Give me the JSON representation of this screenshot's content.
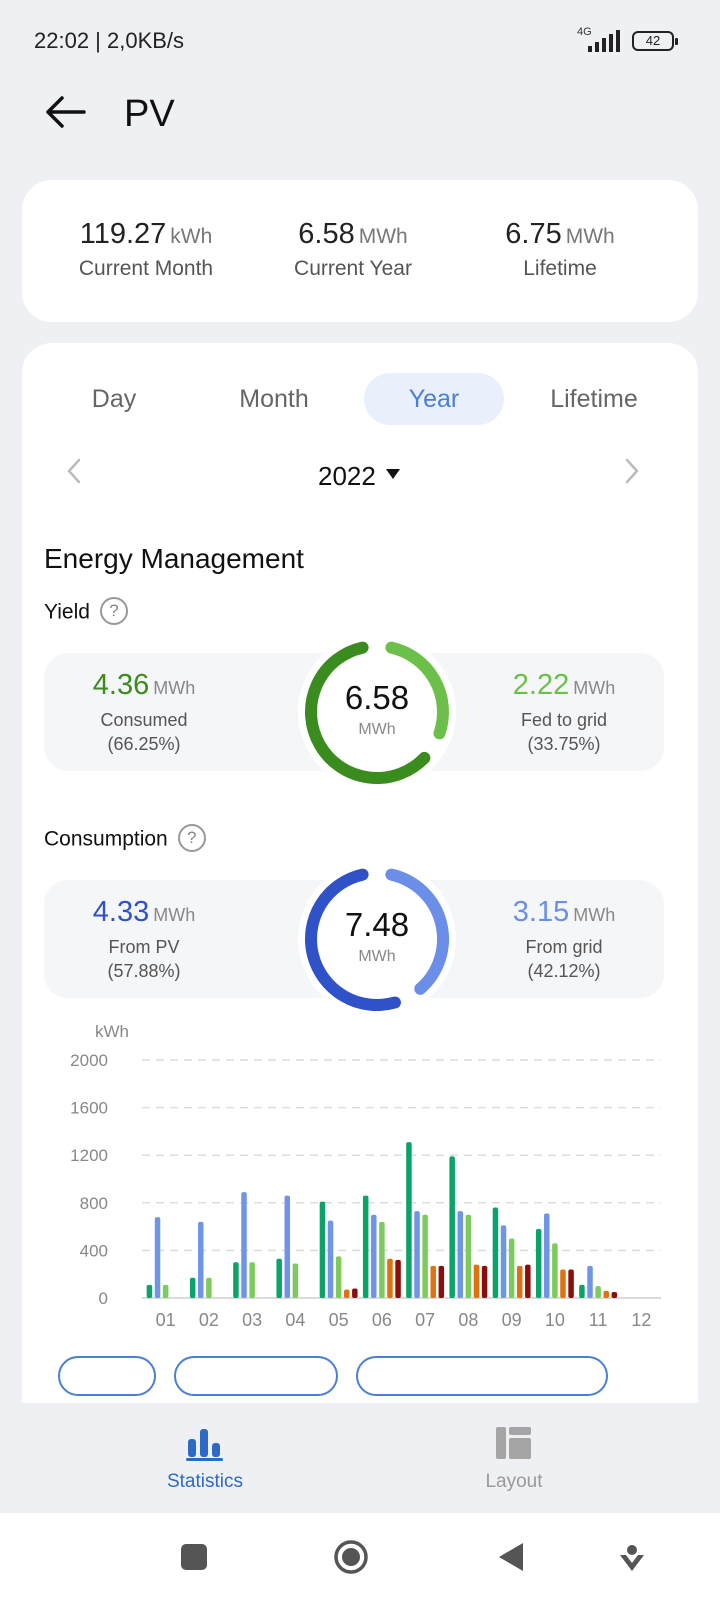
{
  "status": {
    "time_speed": "22:02 | 2,0KB/s",
    "network": "4G",
    "battery": "42"
  },
  "header": {
    "title": "PV",
    "back_icon": "arrow-left-icon"
  },
  "summary": [
    {
      "value": "119.27",
      "unit": "kWh",
      "label": "Current Month"
    },
    {
      "value": "6.58",
      "unit": "MWh",
      "label": "Current Year"
    },
    {
      "value": "6.75",
      "unit": "MWh",
      "label": "Lifetime"
    }
  ],
  "tabs": [
    {
      "label": "Day",
      "active": false
    },
    {
      "label": "Month",
      "active": false
    },
    {
      "label": "Year",
      "active": true
    },
    {
      "label": "Lifetime",
      "active": false
    }
  ],
  "period": {
    "year": "2022"
  },
  "section": {
    "title": "Energy Management"
  },
  "yield": {
    "title": "Yield",
    "total": "6.58",
    "total_unit": "MWh",
    "left": {
      "value": "4.36",
      "unit": "MWh",
      "label": "Consumed",
      "pct": "(66.25%)",
      "color": "#3a8c1e"
    },
    "right": {
      "value": "2.22",
      "unit": "MWh",
      "label": "Fed to grid",
      "pct": "(33.75%)",
      "color": "#6cc04a"
    },
    "fraction_left": 0.6625
  },
  "consumption": {
    "title": "Consumption",
    "total": "7.48",
    "total_unit": "MWh",
    "left": {
      "value": "4.33",
      "unit": "MWh",
      "label": "From PV",
      "pct": "(57.88%)",
      "color": "#2f52c8"
    },
    "right": {
      "value": "3.15",
      "unit": "MWh",
      "label": "From grid",
      "pct": "(42.12%)",
      "color": "#6b8fe8"
    },
    "fraction_left": 0.5788
  },
  "chart_data": {
    "type": "bar",
    "ylabel": "kWh",
    "ylim": [
      0,
      2000
    ],
    "yticks": [
      0,
      400,
      800,
      1200,
      1600,
      2000
    ],
    "grid": true,
    "categories": [
      "01",
      "02",
      "03",
      "04",
      "05",
      "06",
      "07",
      "08",
      "09",
      "10",
      "11",
      "12"
    ],
    "series": [
      {
        "color": "#0aa36a",
        "values": [
          110,
          170,
          300,
          330,
          810,
          860,
          1310,
          1190,
          760,
          580,
          110,
          0
        ]
      },
      {
        "color": "#7095e6",
        "values": [
          680,
          640,
          890,
          860,
          650,
          700,
          730,
          730,
          610,
          710,
          270,
          0
        ]
      },
      {
        "color": "#7ccb5c",
        "values": [
          110,
          170,
          300,
          290,
          350,
          640,
          700,
          700,
          500,
          460,
          100,
          0
        ]
      },
      {
        "color": "#e07010",
        "values": [
          0,
          0,
          0,
          0,
          70,
          330,
          270,
          280,
          270,
          240,
          60,
          0
        ]
      },
      {
        "color": "#8b0d0d",
        "values": [
          0,
          0,
          0,
          0,
          80,
          320,
          270,
          270,
          280,
          240,
          50,
          0
        ]
      }
    ]
  },
  "bottom_nav": [
    {
      "label": "Statistics",
      "active": true,
      "icon": "bar-chart-icon"
    },
    {
      "label": "Layout",
      "active": false,
      "icon": "layout-icon"
    }
  ],
  "colors": {
    "accent": "#4a7fd6",
    "active_nav": "#2c6ac6",
    "inactive_nav": "#999999"
  }
}
